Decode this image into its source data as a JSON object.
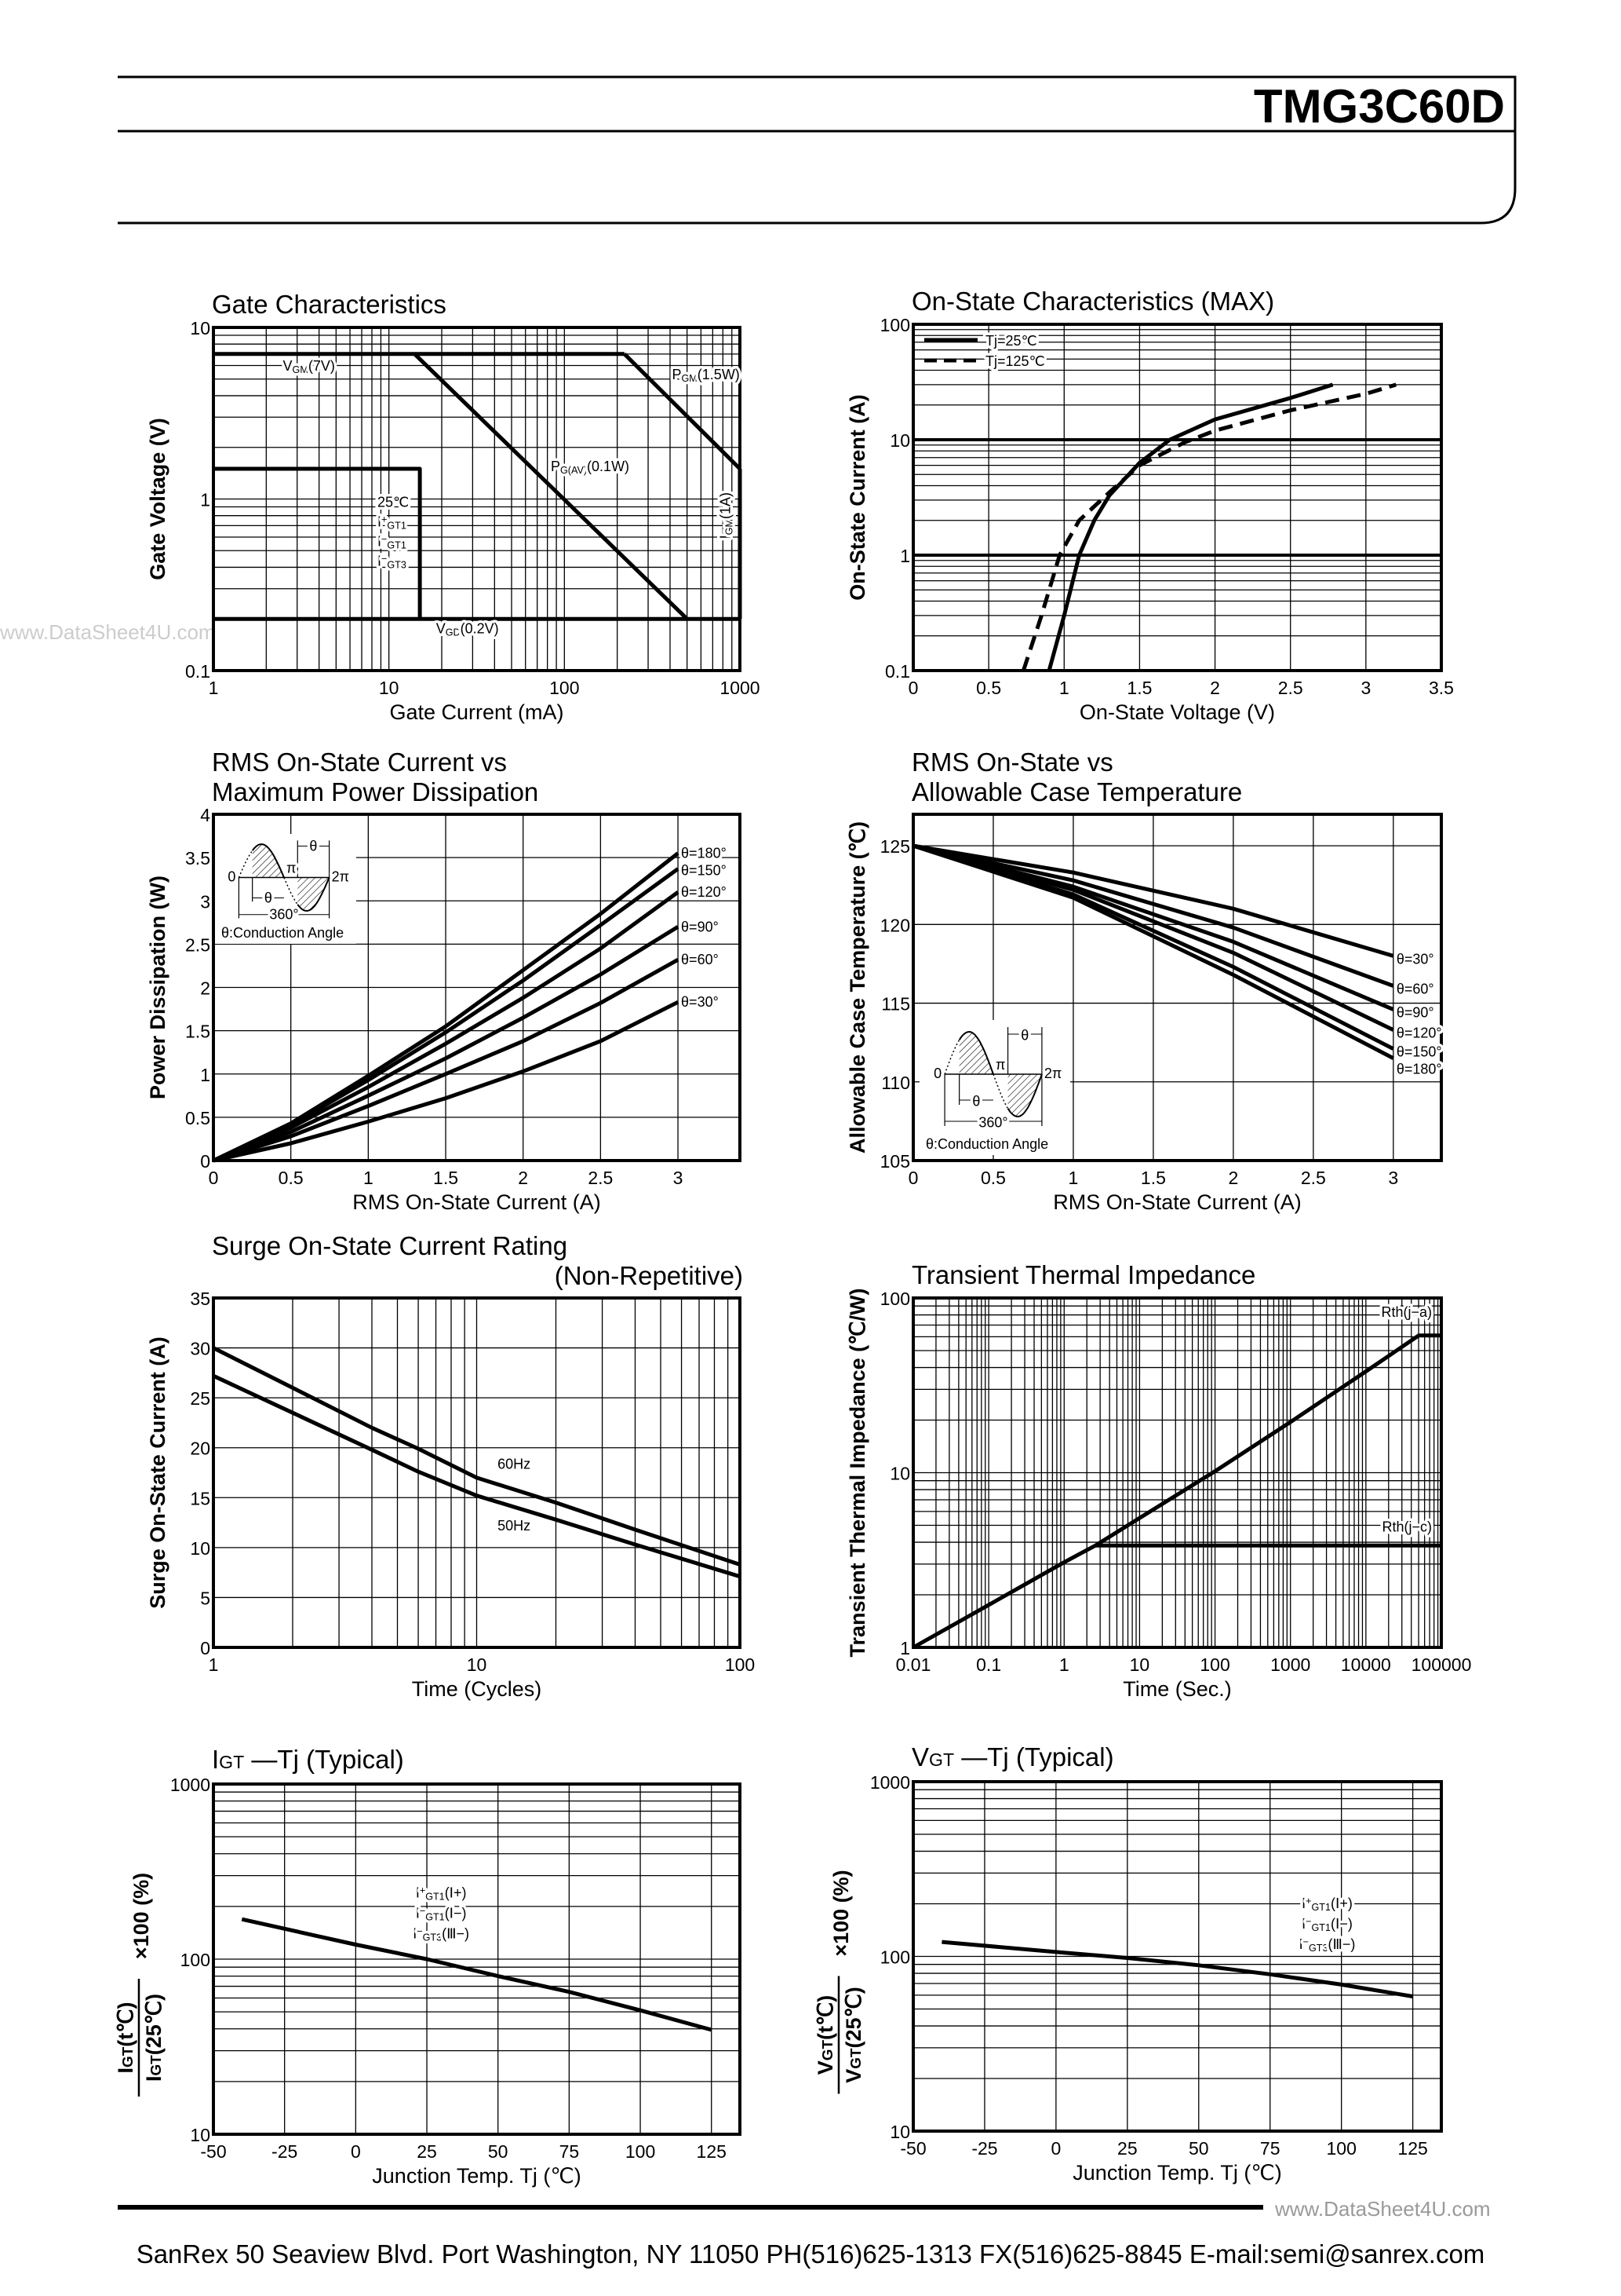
{
  "header": {
    "part_number": "TMG3C60D"
  },
  "footer": {
    "address": "SanRex 50 Seaview Blvd. Port Washington, NY 11050 PH(516)625-1313 FX(516)625-8845 E-mail:semi@sanrex.com"
  },
  "watermarks": [
    "www.DataSheet4U.com",
    "www.DataSheet4U.com"
  ],
  "chart_data": [
    {
      "type": "line",
      "title": [
        "Gate Characteristics"
      ],
      "xlabel": "Gate Current (mA)",
      "ylabel": "Gate Voltage (V)",
      "xscale": "log",
      "yscale": "log",
      "xlim": [
        1,
        1000
      ],
      "ylim": [
        0.1,
        10
      ],
      "xticks": [
        "1",
        "10",
        "100",
        "1000"
      ],
      "yticks": [
        "0.1",
        "1",
        "10"
      ],
      "grid": true,
      "series": [
        {
          "x": [
            1,
            220
          ],
          "y": [
            7,
            7
          ]
        },
        {
          "x": [
            220,
            1000
          ],
          "y": [
            7,
            1.5
          ]
        },
        {
          "x": [
            14,
            500
          ],
          "y": [
            7,
            0.2
          ]
        },
        {
          "x": [
            1000,
            1000
          ],
          "y": [
            1.5,
            0.2
          ]
        },
        {
          "x": [
            1,
            1000
          ],
          "y": [
            0.2,
            0.2
          ]
        },
        {
          "x": [
            1,
            15,
            15
          ],
          "y": [
            1.5,
            1.5,
            0.2
          ]
        }
      ],
      "annotations": [
        {
          "parts": [
            {
              "t": "V"
            },
            {
              "t": "GM",
              "sub": true
            },
            {
              "t": "(7V)"
            }
          ]
        },
        {
          "parts": [
            {
              "t": "P"
            },
            {
              "t": "GM",
              "sub": true
            },
            {
              "t": "(1.5W)"
            }
          ]
        },
        {
          "parts": [
            {
              "t": "P"
            },
            {
              "t": "G(AV)",
              "sub": true
            },
            {
              "t": "(0.1W)"
            }
          ]
        },
        {
          "parts": [
            {
              "t": "V"
            },
            {
              "t": "GD",
              "sub": true
            },
            {
              "t": "(0.2V)"
            }
          ]
        },
        {
          "parts": [
            {
              "t": "25℃"
            }
          ]
        },
        {
          "parts": [
            {
              "t": "I"
            },
            {
              "t": "+",
              "sup": true
            },
            {
              "t": "GT1",
              "sub": true
            }
          ]
        },
        {
          "parts": [
            {
              "t": "I"
            },
            {
              "t": "−",
              "sup": true
            },
            {
              "t": "GT1",
              "sub": true
            }
          ]
        },
        {
          "parts": [
            {
              "t": "I"
            },
            {
              "t": "−",
              "sup": true
            },
            {
              "t": "GT3",
              "sub": true
            }
          ]
        },
        {
          "parts": [
            {
              "t": "I"
            },
            {
              "t": "GM",
              "sub": true
            },
            {
              "t": "(1A)"
            }
          ]
        }
      ]
    },
    {
      "type": "line",
      "title": [
        "On-State Characteristics (MAX)"
      ],
      "xlabel": "On-State Voltage (V)",
      "ylabel": "On-State Current (A)",
      "xscale": "linear",
      "yscale": "log",
      "xlim": [
        0,
        3.5
      ],
      "ylim": [
        0.1,
        100
      ],
      "xticks": [
        "0",
        "0.5",
        "1",
        "1.5",
        "2",
        "2.5",
        "3",
        "3.5"
      ],
      "yticks": [
        "0.1",
        "1",
        "10",
        "100"
      ],
      "grid": true,
      "legend": "top-left",
      "series": [
        {
          "name": "Tj=25℃",
          "style": "solid",
          "x": [
            0.9,
            1.0,
            1.1,
            1.2,
            1.3,
            1.5,
            1.7,
            2.0,
            2.5,
            2.78
          ],
          "y": [
            0.1,
            0.3,
            1,
            2,
            3.3,
            6.3,
            10,
            15,
            23,
            30
          ]
        },
        {
          "name": "Tj=125℃",
          "style": "dashed",
          "x": [
            0.73,
            0.85,
            0.97,
            1.1,
            1.3,
            1.5,
            1.8,
            2.0,
            2.5,
            3.0,
            3.2
          ],
          "y": [
            0.1,
            0.3,
            1,
            2,
            3.5,
            6,
            9.5,
            12,
            18,
            25,
            30
          ]
        }
      ]
    },
    {
      "type": "line",
      "title": [
        "RMS On-State Current vs",
        "Maximum Power Dissipation"
      ],
      "xlabel": "RMS On-State Current (A)",
      "ylabel": "Power Dissipation (W)",
      "xscale": "linear",
      "yscale": "linear",
      "xlim": [
        0,
        3.4
      ],
      "ylim": [
        0,
        4
      ],
      "xticks": [
        "0",
        "0.5",
        "1",
        "1.5",
        "2",
        "2.5",
        "3"
      ],
      "yticks": [
        "0",
        "0.5",
        "1",
        "1.5",
        "2",
        "2.5",
        "3",
        "3.5",
        "4"
      ],
      "grid": true,
      "series": [
        {
          "name": "θ=180°",
          "x": [
            0,
            0.5,
            1,
            1.5,
            2,
            2.5,
            3
          ],
          "y": [
            0,
            0.43,
            0.98,
            1.55,
            2.2,
            2.85,
            3.55
          ]
        },
        {
          "name": "θ=150°",
          "x": [
            0,
            0.5,
            1,
            1.5,
            2,
            2.5,
            3
          ],
          "y": [
            0,
            0.41,
            0.93,
            1.48,
            2.08,
            2.72,
            3.37
          ]
        },
        {
          "name": "θ=120°",
          "x": [
            0,
            0.5,
            1,
            1.5,
            2,
            2.5,
            3
          ],
          "y": [
            0,
            0.38,
            0.85,
            1.35,
            1.88,
            2.45,
            3.1
          ]
        },
        {
          "name": "θ=90°",
          "x": [
            0,
            0.5,
            1,
            1.5,
            2,
            2.5,
            3
          ],
          "y": [
            0,
            0.33,
            0.75,
            1.18,
            1.65,
            2.15,
            2.7
          ]
        },
        {
          "name": "θ=60°",
          "x": [
            0,
            0.5,
            1,
            1.5,
            2,
            2.5,
            3
          ],
          "y": [
            0,
            0.28,
            0.63,
            1.0,
            1.38,
            1.82,
            2.32
          ]
        },
        {
          "name": "θ=30°",
          "x": [
            0,
            0.5,
            1,
            1.5,
            2,
            2.5,
            3
          ],
          "y": [
            0,
            0.2,
            0.45,
            0.72,
            1.03,
            1.38,
            1.83
          ]
        }
      ],
      "inset": {
        "labels": [
          "0",
          "π",
          "2π",
          "θ",
          "θ",
          "360°"
        ],
        "caption": "θ:Conduction Angle"
      }
    },
    {
      "type": "line",
      "title": [
        "RMS On-State vs",
        "Allowable Case Temperature"
      ],
      "xlabel": "RMS On-State Current (A)",
      "ylabel": "Allowable Case Temperature (℃)",
      "xscale": "linear",
      "yscale": "linear",
      "xlim": [
        0,
        3.3
      ],
      "ylim": [
        105,
        127
      ],
      "xticks": [
        "0",
        "0.5",
        "1",
        "1.5",
        "2",
        "2.5",
        "3"
      ],
      "yticks": [
        "105",
        "110",
        "115",
        "120",
        "125"
      ],
      "grid": true,
      "series": [
        {
          "name": "θ=30°",
          "x": [
            0,
            1,
            2,
            3
          ],
          "y": [
            125,
            123.3,
            121,
            118
          ]
        },
        {
          "name": "θ=60°",
          "x": [
            0,
            1,
            2,
            3
          ],
          "y": [
            125,
            122.8,
            119.8,
            116.1
          ]
        },
        {
          "name": "θ=90°",
          "x": [
            0,
            1,
            2,
            3
          ],
          "y": [
            125,
            122.4,
            118.9,
            114.6
          ]
        },
        {
          "name": "θ=120°",
          "x": [
            0,
            1,
            2,
            3
          ],
          "y": [
            125,
            122.2,
            118.2,
            113.3
          ]
        },
        {
          "name": "θ=150°",
          "x": [
            0,
            1,
            2,
            3
          ],
          "y": [
            125,
            121.9,
            117.3,
            112.1
          ]
        },
        {
          "name": "θ=180°",
          "x": [
            0,
            1,
            2,
            3
          ],
          "y": [
            125,
            121.7,
            116.8,
            111.5
          ]
        }
      ],
      "inset": {
        "labels": [
          "0",
          "π",
          "2π",
          "θ",
          "θ",
          "360°"
        ],
        "caption": "θ:Conduction Angle"
      }
    },
    {
      "type": "line",
      "title": [
        "Surge On-State Current Rating",
        "(Non-Repetitive)"
      ],
      "xlabel": "Time (Cycles)",
      "ylabel": "Surge On-State Current (A)",
      "xscale": "log",
      "yscale": "linear",
      "xlim": [
        1,
        100
      ],
      "ylim": [
        0,
        35
      ],
      "xticks": [
        "1",
        "10",
        "100"
      ],
      "yticks": [
        "0",
        "5",
        "10",
        "15",
        "20",
        "25",
        "30",
        "35"
      ],
      "grid": true,
      "series": [
        {
          "name": "60Hz",
          "x": [
            1,
            2,
            4,
            6,
            10,
            20,
            40,
            100
          ],
          "y": [
            30,
            26,
            22,
            19.9,
            17,
            14.5,
            11.8,
            8.3
          ]
        },
        {
          "name": "50Hz",
          "x": [
            1,
            2,
            4,
            6,
            10,
            20,
            40,
            100
          ],
          "y": [
            27.2,
            23.5,
            19.8,
            17.6,
            15.2,
            12.8,
            10.3,
            7.1
          ]
        }
      ]
    },
    {
      "type": "line",
      "title": [
        "Transient Thermal Impedance"
      ],
      "xlabel": "Time (Sec.)",
      "ylabel": "Transient Thermal Impedance (℃/W)",
      "xscale": "log",
      "yscale": "log",
      "xlim": [
        0.01,
        100000
      ],
      "ylim": [
        1,
        100
      ],
      "xticks": [
        "0.01",
        "0.1",
        "1",
        "10",
        "100",
        "1000",
        "10000",
        "100000"
      ],
      "yticks": [
        "1",
        "10",
        "100"
      ],
      "grid": true,
      "series": [
        {
          "name": "Rth(j−a)",
          "x": [
            0.01,
            0.1,
            1,
            2.6,
            10,
            100,
            1000,
            10000,
            50000,
            100000
          ],
          "y": [
            1,
            1.75,
            3.07,
            3.83,
            5.5,
            10.2,
            19.5,
            38,
            61,
            61
          ]
        },
        {
          "name": "Rth(j−c)",
          "x": [
            2.6,
            100000
          ],
          "y": [
            3.83,
            3.83
          ]
        }
      ]
    },
    {
      "type": "line",
      "title_prefix": "I",
      "title_sub": "GT",
      "title": [
        " —Tj (Typical)"
      ],
      "xlabel": "Junction Temp. Tj (℃)",
      "ylabel_num": [
        "I",
        "GT",
        "(t℃)"
      ],
      "ylabel_den": [
        "I",
        "GT",
        "(25℃)"
      ],
      "ylabel_suffix": "×100 (%)",
      "xscale": "linear",
      "yscale": "log",
      "xlim": [
        -50,
        135
      ],
      "ylim": [
        10,
        1000
      ],
      "xticks": [
        "-50",
        "-25",
        "0",
        "25",
        "50",
        "75",
        "100",
        "125"
      ],
      "yticks": [
        "10",
        "100",
        "1000"
      ],
      "grid": true,
      "series": [
        {
          "x": [
            -40,
            0,
            25,
            50,
            75,
            100,
            125
          ],
          "y": [
            169,
            121,
            100,
            80,
            65,
            51,
            39.5
          ]
        }
      ],
      "annotations": [
        {
          "parts": [
            {
              "t": "I"
            },
            {
              "t": "+",
              "sup": true
            },
            {
              "t": "GT1",
              "sub": true
            },
            {
              "t": "(Ⅰ+)"
            }
          ]
        },
        {
          "parts": [
            {
              "t": "I"
            },
            {
              "t": "−",
              "sup": true
            },
            {
              "t": "GT1",
              "sub": true
            },
            {
              "t": "(Ⅰ−)"
            }
          ]
        },
        {
          "parts": [
            {
              "t": "I"
            },
            {
              "t": "−",
              "sup": true
            },
            {
              "t": "GT3",
              "sub": true
            },
            {
              "t": "(Ⅲ−)"
            }
          ]
        }
      ]
    },
    {
      "type": "line",
      "title_prefix": "V",
      "title_sub": "GT",
      "title": [
        " —Tj (Typical)"
      ],
      "xlabel": "Junction Temp. Tj (℃)",
      "ylabel_num": [
        "V",
        "GT",
        "(t℃)"
      ],
      "ylabel_den": [
        "V",
        "GT",
        "(25℃)"
      ],
      "ylabel_suffix": "×100 (%)",
      "xscale": "linear",
      "yscale": "log",
      "xlim": [
        -50,
        135
      ],
      "ylim": [
        10,
        1000
      ],
      "xticks": [
        "-50",
        "-25",
        "0",
        "25",
        "50",
        "75",
        "100",
        "125"
      ],
      "yticks": [
        "10",
        "100",
        "1000"
      ],
      "grid": true,
      "series": [
        {
          "x": [
            -40,
            0,
            25,
            50,
            75,
            100,
            125
          ],
          "y": [
            121,
            106,
            98,
            89,
            79,
            69,
            59
          ]
        }
      ],
      "annotations": [
        {
          "parts": [
            {
              "t": "I"
            },
            {
              "t": "+",
              "sup": true
            },
            {
              "t": "GT1",
              "sub": true
            },
            {
              "t": "(Ⅰ+)"
            }
          ]
        },
        {
          "parts": [
            {
              "t": "I"
            },
            {
              "t": "−",
              "sup": true
            },
            {
              "t": "GT1",
              "sub": true
            },
            {
              "t": "(Ⅰ−)"
            }
          ]
        },
        {
          "parts": [
            {
              "t": "I"
            },
            {
              "t": "−",
              "sup": true
            },
            {
              "t": "GT3",
              "sub": true
            },
            {
              "t": "(Ⅲ−)"
            }
          ]
        }
      ]
    }
  ]
}
